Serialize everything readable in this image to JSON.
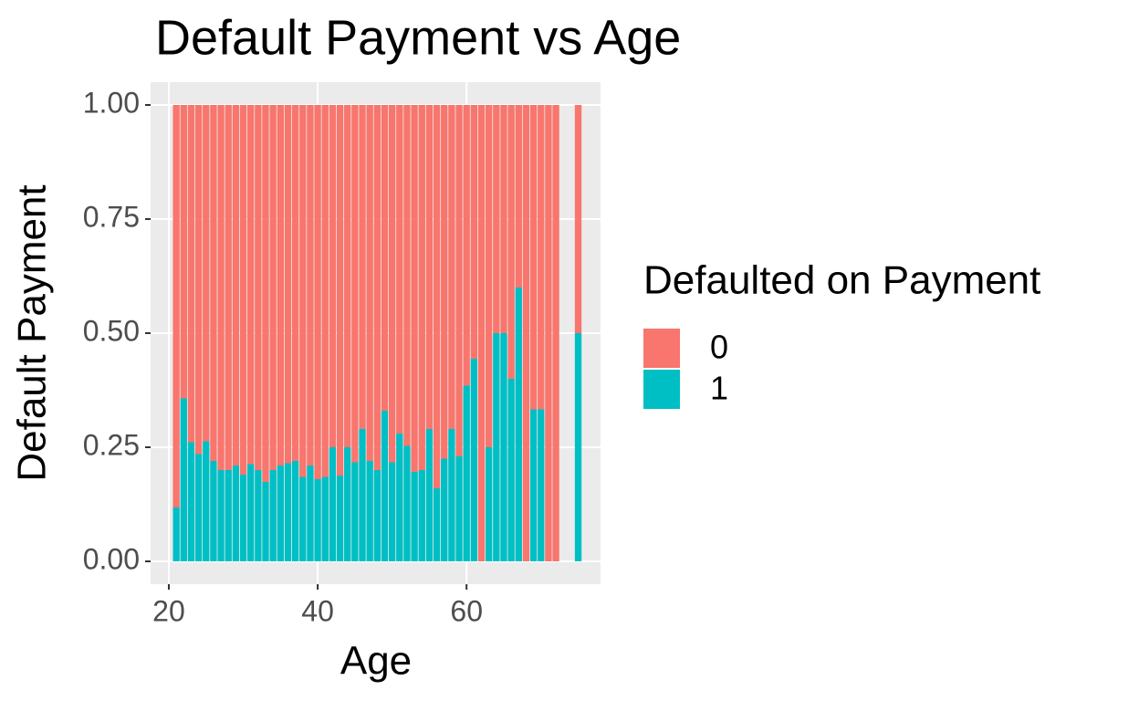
{
  "chart_data": {
    "type": "bar",
    "stacked": true,
    "title": "Default Payment vs Age",
    "x_label": "Age",
    "y_label": "Default Payment",
    "legend_title": "Defaulted on Payment",
    "legend": "right",
    "x": [
      21,
      22,
      23,
      24,
      25,
      26,
      27,
      28,
      29,
      30,
      31,
      32,
      33,
      34,
      35,
      36,
      37,
      38,
      39,
      40,
      41,
      42,
      43,
      44,
      45,
      46,
      47,
      48,
      49,
      50,
      51,
      52,
      53,
      54,
      55,
      56,
      57,
      58,
      59,
      60,
      61,
      62,
      63,
      64,
      65,
      66,
      67,
      68,
      69,
      70,
      71,
      72,
      75
    ],
    "series": [
      {
        "name": "0",
        "color": "#F8766D",
        "values": [
          0.882,
          0.643,
          0.739,
          0.765,
          0.737,
          0.78,
          0.8,
          0.8,
          0.79,
          0.81,
          0.787,
          0.8,
          0.826,
          0.8,
          0.79,
          0.785,
          0.78,
          0.815,
          0.79,
          0.82,
          0.815,
          0.75,
          0.812,
          0.75,
          0.783,
          0.71,
          0.78,
          0.8,
          0.67,
          0.783,
          0.72,
          0.747,
          0.804,
          0.8,
          0.71,
          0.84,
          0.775,
          0.71,
          0.77,
          0.615,
          0.556,
          1,
          0.75,
          0.5,
          0.5,
          0.6,
          0.4,
          1,
          0.667,
          0.667,
          1,
          1,
          0.5
        ]
      },
      {
        "name": "1",
        "color": "#00BFC4",
        "values": [
          0.118,
          0.357,
          0.261,
          0.235,
          0.263,
          0.22,
          0.2,
          0.2,
          0.21,
          0.19,
          0.213,
          0.2,
          0.174,
          0.2,
          0.21,
          0.215,
          0.22,
          0.185,
          0.21,
          0.18,
          0.185,
          0.25,
          0.188,
          0.25,
          0.217,
          0.29,
          0.22,
          0.2,
          0.33,
          0.217,
          0.28,
          0.253,
          0.196,
          0.2,
          0.29,
          0.16,
          0.225,
          0.29,
          0.23,
          0.385,
          0.444,
          0,
          0.25,
          0.5,
          0.5,
          0.4,
          0.6,
          0,
          0.333,
          0.333,
          0,
          0,
          0.5
        ]
      }
    ],
    "xlim": [
      17.55,
      78.0
    ],
    "xticks": [
      20,
      40,
      60
    ],
    "ylim": [
      -0.05,
      1.05
    ],
    "yticks": [
      {
        "value": 0,
        "label": "0.00"
      },
      {
        "value": 0.25,
        "label": "0.25"
      },
      {
        "value": 0.5,
        "label": "0.50"
      },
      {
        "value": 0.75,
        "label": "0.75"
      },
      {
        "value": 1,
        "label": "1.00"
      }
    ],
    "grid": true
  }
}
